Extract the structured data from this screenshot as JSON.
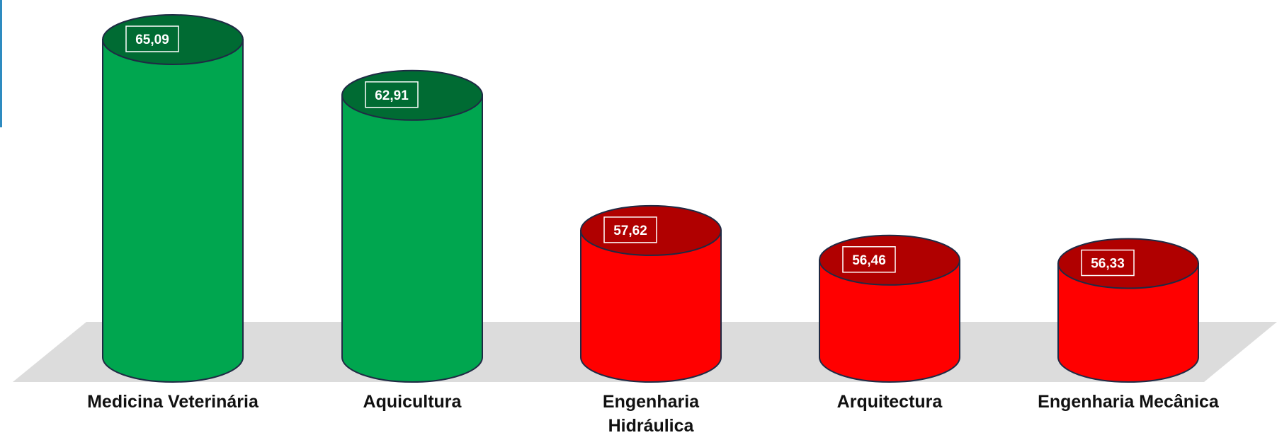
{
  "chart_data": {
    "type": "bar",
    "style": "3d-cylinder",
    "categories": [
      "Medicina Veterinária",
      "Aquicultura",
      "Engenharia Hidráulica",
      "Arquitectura",
      "Engenharia Mecânica"
    ],
    "category_lines": [
      [
        "Medicina Veterinária"
      ],
      [
        "Aquicultura"
      ],
      [
        "Engenharia",
        "Hidráulica"
      ],
      [
        "Arquitectura"
      ],
      [
        "Engenharia Mecânica"
      ]
    ],
    "values": [
      65.09,
      62.91,
      57.62,
      56.46,
      56.33
    ],
    "value_labels": [
      "65,09",
      "62,91",
      "57,62",
      "56,46",
      "56,33"
    ],
    "colors": [
      "#00a64f",
      "#00a64f",
      "#ff0000",
      "#ff0000",
      "#ff0000"
    ],
    "top_colors": [
      "#006b33",
      "#006b33",
      "#b00000",
      "#b00000",
      "#b00000"
    ],
    "floor_color": "#dcdcdc",
    "grid": false,
    "legend": "none"
  }
}
